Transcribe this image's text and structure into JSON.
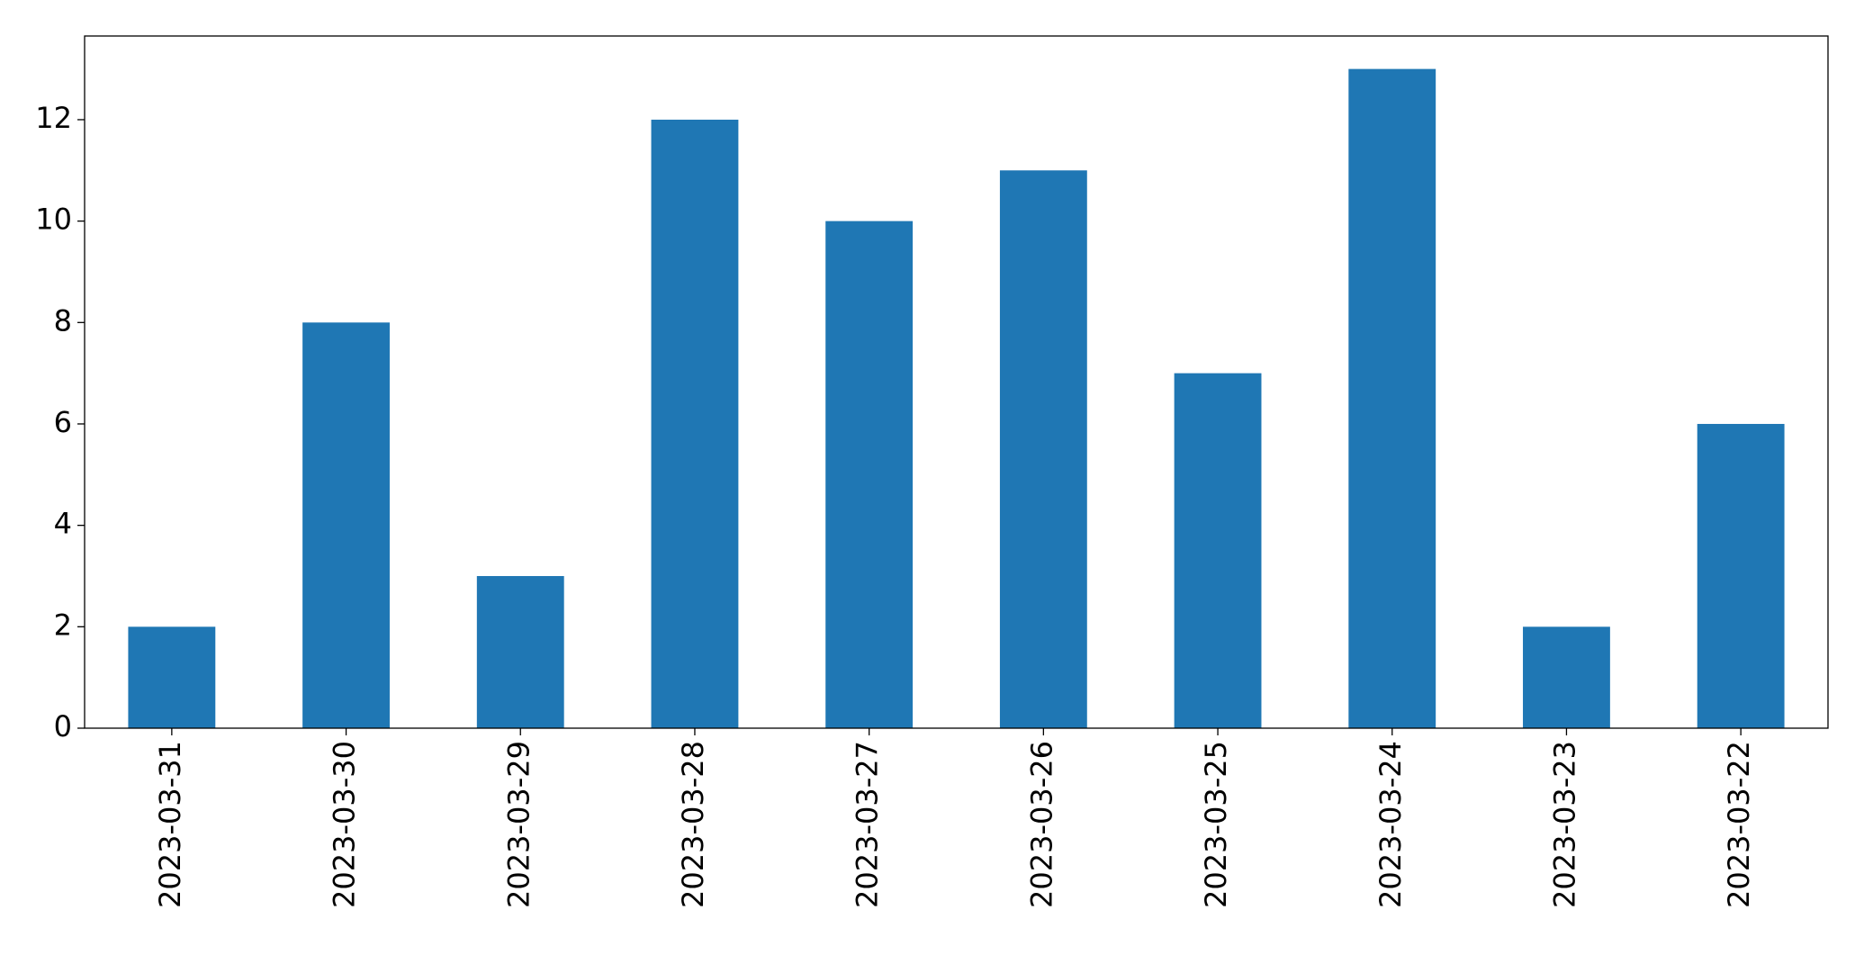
{
  "chart_data": {
    "type": "bar",
    "categories": [
      "2023-03-31",
      "2023-03-30",
      "2023-03-29",
      "2023-03-28",
      "2023-03-27",
      "2023-03-26",
      "2023-03-25",
      "2023-03-24",
      "2023-03-23",
      "2023-03-22"
    ],
    "values": [
      2,
      8,
      3,
      12,
      10,
      11,
      7,
      13,
      2,
      6
    ],
    "color": "#1f77b4",
    "ylim": [
      0,
      13.65
    ],
    "yticks": [
      0,
      2,
      4,
      6,
      8,
      10,
      12
    ],
    "grid": false
  }
}
